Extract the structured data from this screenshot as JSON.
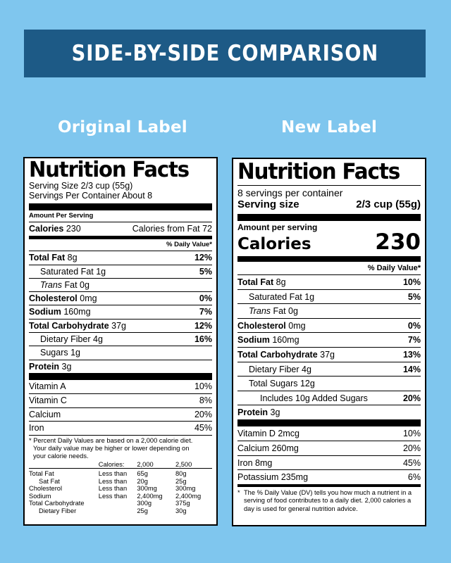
{
  "banner": {
    "title": "SIDE-BY-SIDE COMPARISON"
  },
  "headings": {
    "original": "Original Label",
    "new": "New Label"
  },
  "original": {
    "title": "Nutrition Facts",
    "serving_size": "Serving Size 2/3 cup (55g)",
    "servings": "Servings Per Container About 8",
    "amount_per_serving": "Amount Per Serving",
    "calories_label": "Calories",
    "calories_value": "230",
    "calories_from_fat": "Calories from Fat 72",
    "dv_header": "% Daily Value*",
    "nutrients": [
      {
        "label": "Total Fat",
        "amount": "8g",
        "dv": "12%",
        "bold": true,
        "indent": 0
      },
      {
        "label": "Saturated Fat",
        "amount": "1g",
        "dv": "5%",
        "bold": false,
        "indent": 1
      },
      {
        "label": "Trans",
        "amount": "Fat 0g",
        "dv": "",
        "bold": false,
        "indent": 1,
        "italic": true
      },
      {
        "label": "Cholesterol",
        "amount": "0mg",
        "dv": "0%",
        "bold": true,
        "indent": 0
      },
      {
        "label": "Sodium",
        "amount": "160mg",
        "dv": "7%",
        "bold": true,
        "indent": 0
      },
      {
        "label": "Total Carbohydrate",
        "amount": "37g",
        "dv": "12%",
        "bold": true,
        "indent": 0
      },
      {
        "label": "Dietary Fiber",
        "amount": "4g",
        "dv": "16%",
        "bold": false,
        "indent": 1
      },
      {
        "label": "Sugars",
        "amount": "1g",
        "dv": "",
        "bold": false,
        "indent": 1
      },
      {
        "label": "Protein",
        "amount": "3g",
        "dv": "",
        "bold": true,
        "indent": 0
      }
    ],
    "vitamins": [
      {
        "label": "Vitamin A",
        "dv": "10%"
      },
      {
        "label": "Vitamin C",
        "dv": "8%"
      },
      {
        "label": "Calcium",
        "dv": "20%"
      },
      {
        "label": "Iron",
        "dv": "45%"
      }
    ],
    "footnote_1": "* Percent Daily Values are based on a 2,000 calorie diet.",
    "footnote_2": "Your daily value may be higher or lower depending on",
    "footnote_3": "your calorie needs.",
    "dv_table": {
      "header": [
        "",
        "Calories:",
        "2,000",
        "2,500"
      ],
      "rows": [
        [
          "Total Fat",
          "Less than",
          "65g",
          "80g"
        ],
        [
          "Sat Fat",
          "Less than",
          "20g",
          "25g"
        ],
        [
          "Cholesterol",
          "Less than",
          "300mg",
          "300mg"
        ],
        [
          "Sodium",
          "Less than",
          "2,400mg",
          "2,400mg"
        ],
        [
          "Total Carbohydrate",
          "",
          "300g",
          "375g"
        ],
        [
          "Dietary Fiber",
          "",
          "25g",
          "30g"
        ]
      ]
    }
  },
  "new": {
    "title": "Nutrition Facts",
    "servings": "8 servings per container",
    "serving_size_label": "Serving size",
    "serving_size_value": "2/3 cup (55g)",
    "amount_per_serving": "Amount per serving",
    "calories_label": "Calories",
    "calories_value": "230",
    "dv_header": "% Daily Value*",
    "nutrients": [
      {
        "label": "Total Fat",
        "amount": "8g",
        "dv": "10%",
        "bold": true,
        "indent": 0
      },
      {
        "label": "Saturated Fat",
        "amount": "1g",
        "dv": "5%",
        "bold": false,
        "indent": 1
      },
      {
        "label": "Trans",
        "amount": "Fat 0g",
        "dv": "",
        "bold": false,
        "indent": 1,
        "italic": true
      },
      {
        "label": "Cholesterol",
        "amount": "0mg",
        "dv": "0%",
        "bold": true,
        "indent": 0
      },
      {
        "label": "Sodium",
        "amount": "160mg",
        "dv": "7%",
        "bold": true,
        "indent": 0
      },
      {
        "label": "Total Carbohydrate",
        "amount": "37g",
        "dv": "13%",
        "bold": true,
        "indent": 0
      },
      {
        "label": "Dietary Fiber",
        "amount": "4g",
        "dv": "14%",
        "bold": false,
        "indent": 1
      },
      {
        "label": "Total Sugars",
        "amount": "12g",
        "dv": "",
        "bold": false,
        "indent": 1
      },
      {
        "label": "Includes 10g Added Sugars",
        "amount": "",
        "dv": "20%",
        "bold": false,
        "indent": 2
      },
      {
        "label": "Protein",
        "amount": "3g",
        "dv": "",
        "bold": true,
        "indent": 0
      }
    ],
    "vitamins": [
      {
        "label": "Vitamin D 2mcg",
        "dv": "10%"
      },
      {
        "label": "Calcium 260mg",
        "dv": "20%"
      },
      {
        "label": "Iron 8mg",
        "dv": "45%"
      },
      {
        "label": "Potassium 235mg",
        "dv": "6%"
      }
    ],
    "footnote_star": "*",
    "footnote": "The % Daily Value (DV) tells you how much a nutrient in a serving of food contributes to a daily diet. 2,000 calories a day is used for general nutrition advice."
  }
}
